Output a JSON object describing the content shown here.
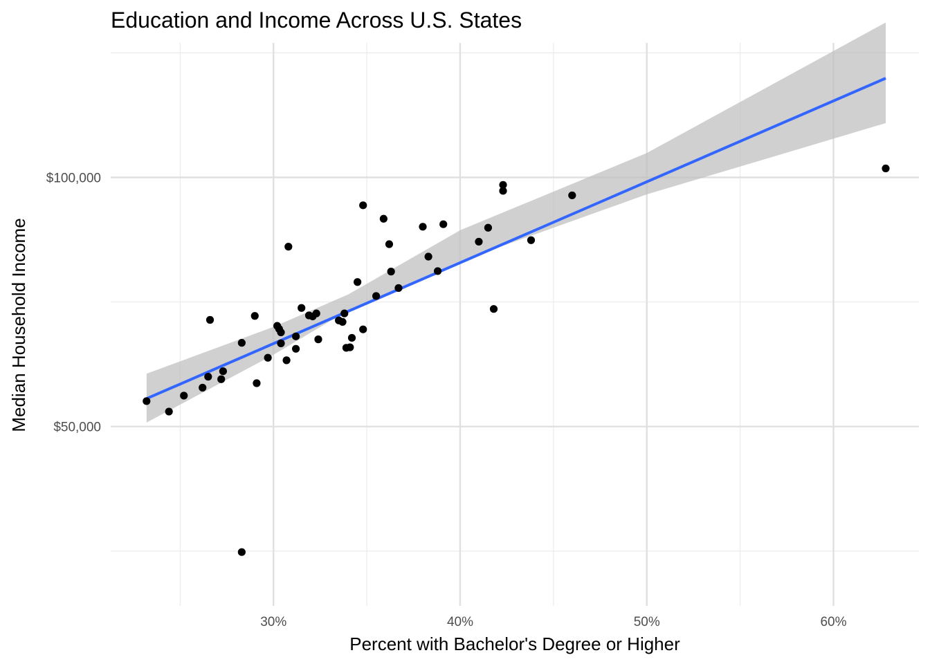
{
  "chart_data": {
    "type": "scatter",
    "title": "Education and Income Across U.S. States",
    "xlabel": "Percent with Bachelor's Degree or Higher",
    "ylabel": "Median Household Income",
    "xlim": [
      0.2128,
      0.6458
    ],
    "ylim": [
      14000,
      127000
    ],
    "x_ticks": [
      0.3,
      0.4,
      0.5,
      0.6
    ],
    "x_tick_labels": [
      "30%",
      "40%",
      "50%",
      "60%"
    ],
    "x_minor_ticks": [
      0.25,
      0.35,
      0.45,
      0.55
    ],
    "y_ticks": [
      50000,
      100000
    ],
    "y_tick_labels": [
      "$50,000",
      "$100,000"
    ],
    "y_minor_ticks": [
      25000,
      75000,
      125000
    ],
    "grid": true,
    "legend": "none",
    "points": [
      {
        "x": 0.232,
        "y": 55100
      },
      {
        "x": 0.244,
        "y": 53000
      },
      {
        "x": 0.252,
        "y": 56200
      },
      {
        "x": 0.262,
        "y": 57800
      },
      {
        "x": 0.265,
        "y": 60000
      },
      {
        "x": 0.266,
        "y": 71400
      },
      {
        "x": 0.272,
        "y": 59500
      },
      {
        "x": 0.273,
        "y": 61100
      },
      {
        "x": 0.283,
        "y": 66800
      },
      {
        "x": 0.283,
        "y": 24800
      },
      {
        "x": 0.29,
        "y": 72200
      },
      {
        "x": 0.291,
        "y": 58700
      },
      {
        "x": 0.297,
        "y": 63800
      },
      {
        "x": 0.302,
        "y": 70200
      },
      {
        "x": 0.303,
        "y": 69600
      },
      {
        "x": 0.304,
        "y": 66700
      },
      {
        "x": 0.304,
        "y": 68900
      },
      {
        "x": 0.307,
        "y": 63300
      },
      {
        "x": 0.308,
        "y": 86100
      },
      {
        "x": 0.312,
        "y": 68100
      },
      {
        "x": 0.312,
        "y": 65600
      },
      {
        "x": 0.315,
        "y": 73800
      },
      {
        "x": 0.319,
        "y": 72300
      },
      {
        "x": 0.321,
        "y": 72100
      },
      {
        "x": 0.323,
        "y": 72700
      },
      {
        "x": 0.324,
        "y": 67500
      },
      {
        "x": 0.335,
        "y": 71300
      },
      {
        "x": 0.337,
        "y": 71000
      },
      {
        "x": 0.338,
        "y": 72700
      },
      {
        "x": 0.339,
        "y": 65800
      },
      {
        "x": 0.341,
        "y": 65900
      },
      {
        "x": 0.342,
        "y": 67800
      },
      {
        "x": 0.345,
        "y": 79000
      },
      {
        "x": 0.348,
        "y": 94400
      },
      {
        "x": 0.348,
        "y": 69500
      },
      {
        "x": 0.355,
        "y": 76200
      },
      {
        "x": 0.359,
        "y": 91700
      },
      {
        "x": 0.362,
        "y": 86600
      },
      {
        "x": 0.363,
        "y": 81100
      },
      {
        "x": 0.367,
        "y": 77800
      },
      {
        "x": 0.38,
        "y": 90100
      },
      {
        "x": 0.383,
        "y": 84100
      },
      {
        "x": 0.388,
        "y": 81200
      },
      {
        "x": 0.391,
        "y": 90600
      },
      {
        "x": 0.41,
        "y": 87100
      },
      {
        "x": 0.415,
        "y": 89900
      },
      {
        "x": 0.418,
        "y": 73600
      },
      {
        "x": 0.423,
        "y": 98500
      },
      {
        "x": 0.423,
        "y": 97300
      },
      {
        "x": 0.438,
        "y": 87400
      },
      {
        "x": 0.46,
        "y": 96400
      },
      {
        "x": 0.628,
        "y": 101800
      }
    ],
    "trend_line": {
      "method": "linear",
      "color": "#3366ff",
      "x": [
        0.232,
        0.628
      ],
      "y": [
        55600,
        119900
      ]
    },
    "confidence_band": {
      "color": "#bebebe",
      "x": [
        0.232,
        0.3,
        0.34,
        0.4,
        0.5,
        0.628
      ],
      "lower": [
        50800,
        64400,
        73300,
        83200,
        96600,
        110900
      ],
      "upper": [
        60600,
        70000,
        76500,
        89400,
        104900,
        131100
      ]
    },
    "point_color": "#000000"
  }
}
